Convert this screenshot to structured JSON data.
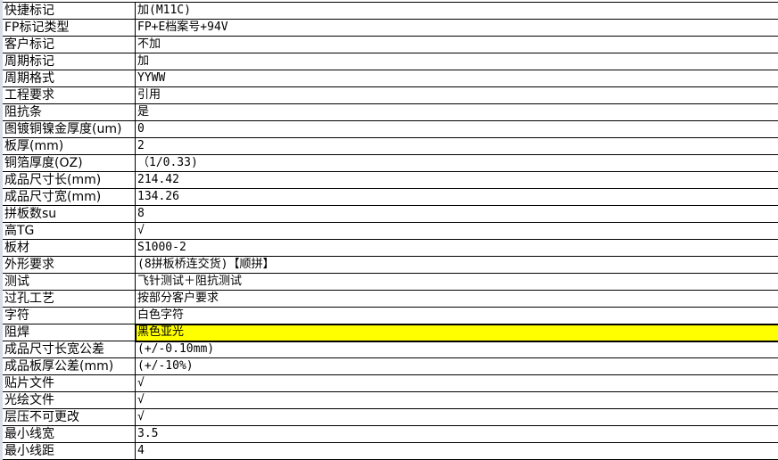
{
  "rows": [
    {
      "label": "快捷标记",
      "value": "加(M11C)"
    },
    {
      "label": "FP标记类型",
      "value": "FP+E档案号+94V"
    },
    {
      "label": "客户标记",
      "value": "不加"
    },
    {
      "label": "周期标记",
      "value": "加"
    },
    {
      "label": "周期格式",
      "value": "YYWW"
    },
    {
      "label": "工程要求",
      "value": "引用"
    },
    {
      "label": "阻抗条",
      "value": "是"
    },
    {
      "label": "图镀铜镍金厚度(um)",
      "value": "0"
    },
    {
      "label": "板厚(mm)",
      "value": "2"
    },
    {
      "label": "铜箔厚度(OZ)",
      "value": "（1/0.33)"
    },
    {
      "label": "成品尺寸长(mm)",
      "value": "214.42"
    },
    {
      "label": "成品尺寸宽(mm)",
      "value": "134.26"
    },
    {
      "label": "拼板数su",
      "value": "8"
    },
    {
      "label": "高TG",
      "value": "√"
    },
    {
      "label": "板材",
      "value": "S1000-2"
    },
    {
      "label": "外形要求",
      "value": "(8拼板桥连交货)【顺拼】"
    },
    {
      "label": "测试",
      "value": "飞针测试＋阻抗测试"
    },
    {
      "label": "过孔工艺",
      "value": "按部分客户要求"
    },
    {
      "label": "字符",
      "value": "白色字符"
    },
    {
      "label": "阻焊",
      "value": "黑色亚光",
      "selected": true
    },
    {
      "label": "成品尺寸长宽公差",
      "value": "(+/-0.10mm)"
    },
    {
      "label": "成品板厚公差(mm)",
      "value": "(+/-10%)"
    },
    {
      "label": "贴片文件",
      "value": "√"
    },
    {
      "label": "光绘文件",
      "value": "√"
    },
    {
      "label": "层压不可更改",
      "value": "√"
    },
    {
      "label": "最小线宽",
      "value": "3.5"
    },
    {
      "label": "最小线距",
      "value": "4"
    }
  ],
  "colors": {
    "selected_fill": "#ffff00"
  }
}
